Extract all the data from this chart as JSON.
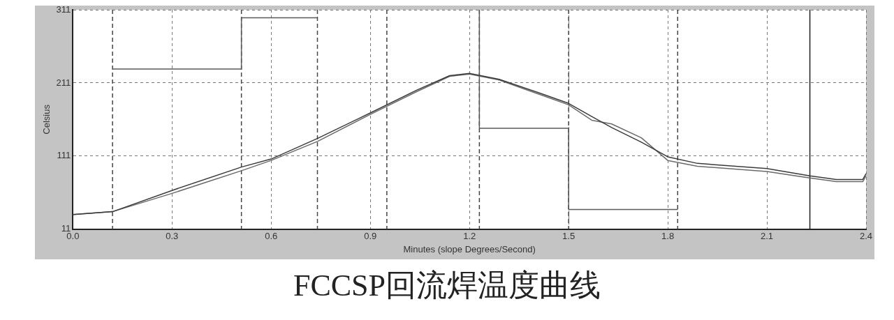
{
  "chart_data": {
    "type": "line",
    "title": "FCCSP回流焊温度曲线",
    "xlabel": "Minutes (slope Degrees/Second)",
    "ylabel": "Celsius",
    "xlim": [
      0,
      2.4
    ],
    "xticks": [
      {
        "value": 0,
        "label": "0.0"
      },
      0.3,
      0.6,
      0.9,
      1.2,
      1.5,
      1.8,
      2.1,
      {
        "value": 2.4,
        "label": "2.4"
      }
    ],
    "ylim": [
      11,
      311
    ],
    "yticks": [
      11,
      111,
      211,
      311
    ],
    "grid": true,
    "legend": false,
    "marker": "none",
    "series": [
      {
        "color": "#3a3a3a",
        "x": [
          0,
          0.12,
          0.3,
          0.51,
          0.6,
          0.74,
          0.9,
          1.04,
          1.14,
          1.2,
          1.29,
          1.42,
          1.5,
          1.57,
          1.63,
          1.72,
          1.8,
          1.89,
          2.1,
          2.23,
          2.31,
          2.39,
          2.4
        ],
        "values": [
          31,
          35,
          64,
          96,
          107,
          135,
          170,
          201,
          221,
          224,
          216,
          196,
          183,
          165,
          150,
          130,
          110,
          101,
          94,
          84,
          79,
          79,
          87
        ]
      },
      {
        "color": "#6a6a6a",
        "x": [
          0,
          0.12,
          0.3,
          0.51,
          0.6,
          0.74,
          0.9,
          1.04,
          1.14,
          1.2,
          1.29,
          1.42,
          1.5,
          1.57,
          1.63,
          1.72,
          1.8,
          1.89,
          2.1,
          2.23,
          2.31,
          2.39,
          2.4
        ],
        "values": [
          31,
          35,
          60,
          91,
          105,
          131,
          168,
          199,
          220,
          223,
          215,
          194,
          181,
          160,
          155,
          136,
          105,
          97,
          90,
          81,
          76,
          76,
          84
        ]
      },
      {
        "color": "#5a5a5a",
        "x": [
          0.12,
          0.51,
          0.51,
          0.74
        ],
        "values": [
          230,
          230,
          300,
          300
        ]
      },
      {
        "color": "#5a5a5a",
        "x": [
          1.23,
          1.23,
          1.5,
          1.5,
          1.83
        ],
        "values": [
          311,
          149,
          149,
          38,
          38
        ]
      }
    ],
    "ref_lines": [
      {
        "axis": "x",
        "value": 0.12,
        "line_style": "dashed",
        "color": "#444444"
      },
      {
        "axis": "x",
        "value": 0.51,
        "line_style": "dashed",
        "color": "#444444"
      },
      {
        "axis": "x",
        "value": 0.74,
        "line_style": "dashed",
        "color": "#444444"
      },
      {
        "axis": "x",
        "value": 0.95,
        "line_style": "dashed",
        "color": "#444444"
      },
      {
        "axis": "x",
        "value": 1.23,
        "line_style": "dashed",
        "color": "#444444"
      },
      {
        "axis": "x",
        "value": 1.5,
        "line_style": "dashed",
        "color": "#444444"
      },
      {
        "axis": "x",
        "value": 1.83,
        "line_style": "dashed",
        "color": "#444444"
      },
      {
        "axis": "x",
        "value": 2.23,
        "line_style": "solid",
        "color": "#222222"
      }
    ]
  }
}
